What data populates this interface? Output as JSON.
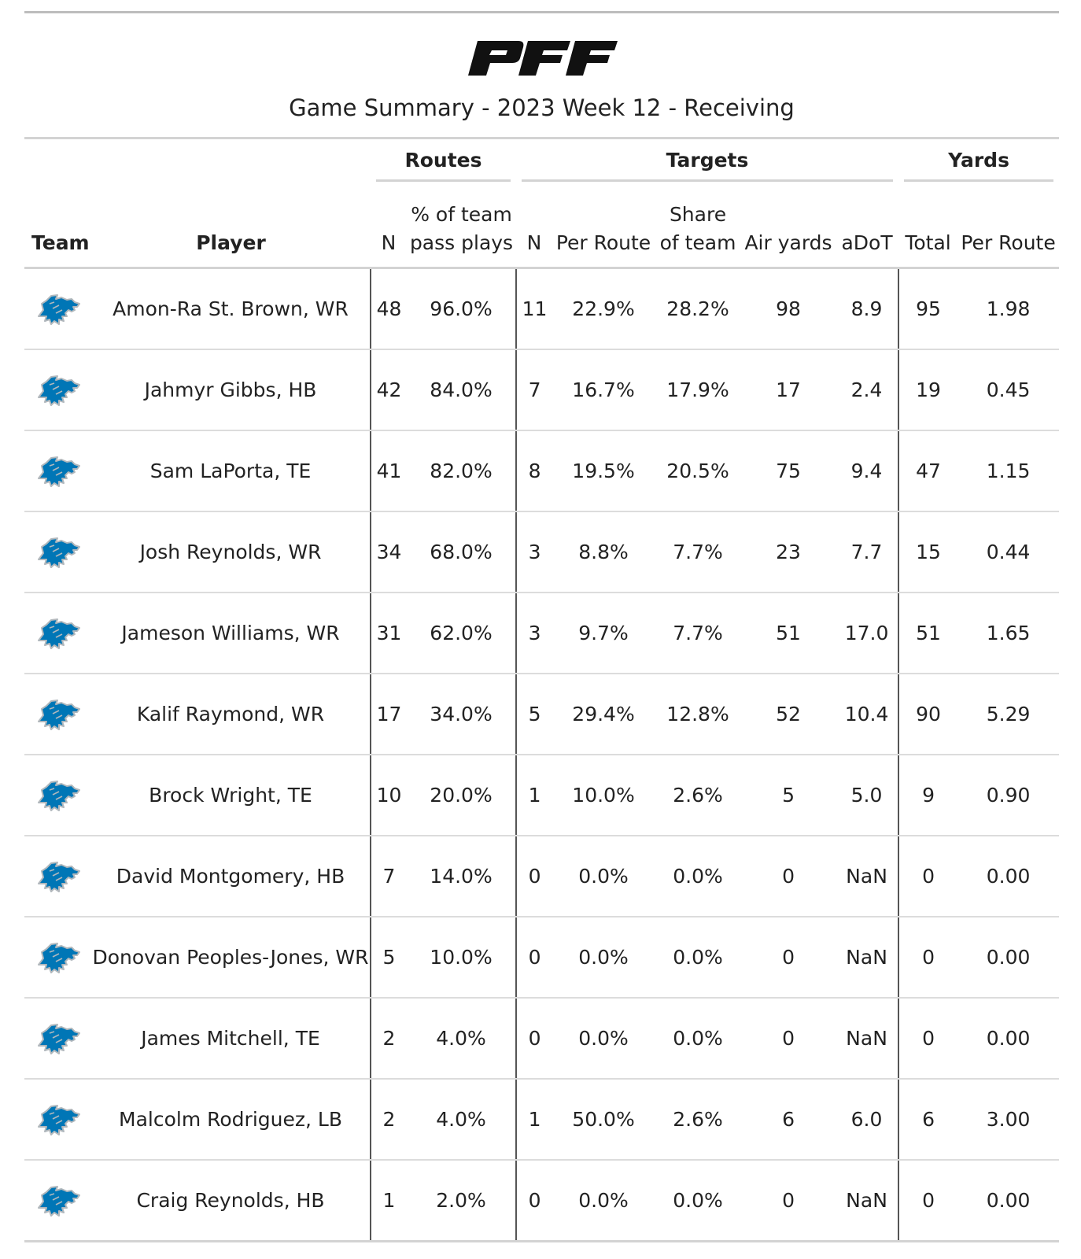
{
  "header": {
    "logo_text": "PFF",
    "title": "Game Summary - 2023 Week 12 - Receiving"
  },
  "spanners": {
    "routes": "Routes",
    "targets": "Targets",
    "yards": "Yards"
  },
  "columns": {
    "team": "Team",
    "player": "Player",
    "routes_n": "N",
    "routes_pct_line1": "% of team",
    "routes_pct_line2": "pass plays",
    "targets_n": "N",
    "targets_per_route": "Per Route",
    "targets_share_line1": "Share",
    "targets_share_line2": "of team",
    "air_yards": "Air yards",
    "adot": "aDoT",
    "yards_total": "Total",
    "yards_per_route": "Per Route"
  },
  "team_icon": "detroit-lions-logo-icon",
  "colors": {
    "lions_blue": "#0076B6",
    "lions_silver": "#B0B7BC"
  },
  "rows": [
    [
      "Amon-Ra St. Brown, WR",
      "48",
      "96.0%",
      "11",
      "22.9%",
      "28.2%",
      "98",
      "8.9",
      "95",
      "1.98"
    ],
    [
      "Jahmyr Gibbs, HB",
      "42",
      "84.0%",
      "7",
      "16.7%",
      "17.9%",
      "17",
      "2.4",
      "19",
      "0.45"
    ],
    [
      "Sam LaPorta, TE",
      "41",
      "82.0%",
      "8",
      "19.5%",
      "20.5%",
      "75",
      "9.4",
      "47",
      "1.15"
    ],
    [
      "Josh Reynolds, WR",
      "34",
      "68.0%",
      "3",
      "8.8%",
      "7.7%",
      "23",
      "7.7",
      "15",
      "0.44"
    ],
    [
      "Jameson Williams, WR",
      "31",
      "62.0%",
      "3",
      "9.7%",
      "7.7%",
      "51",
      "17.0",
      "51",
      "1.65"
    ],
    [
      "Kalif Raymond, WR",
      "17",
      "34.0%",
      "5",
      "29.4%",
      "12.8%",
      "52",
      "10.4",
      "90",
      "5.29"
    ],
    [
      "Brock Wright, TE",
      "10",
      "20.0%",
      "1",
      "10.0%",
      "2.6%",
      "5",
      "5.0",
      "9",
      "0.90"
    ],
    [
      "David Montgomery, HB",
      "7",
      "14.0%",
      "0",
      "0.0%",
      "0.0%",
      "0",
      "NaN",
      "0",
      "0.00"
    ],
    [
      "Donovan Peoples-Jones, WR",
      "5",
      "10.0%",
      "0",
      "0.0%",
      "0.0%",
      "0",
      "NaN",
      "0",
      "0.00"
    ],
    [
      "James Mitchell, TE",
      "2",
      "4.0%",
      "0",
      "0.0%",
      "0.0%",
      "0",
      "NaN",
      "0",
      "0.00"
    ],
    [
      "Malcolm Rodriguez, LB",
      "2",
      "4.0%",
      "1",
      "50.0%",
      "2.6%",
      "6",
      "6.0",
      "6",
      "3.00"
    ],
    [
      "Craig Reynolds, HB",
      "1",
      "2.0%",
      "0",
      "0.0%",
      "0.0%",
      "0",
      "NaN",
      "0",
      "0.00"
    ]
  ]
}
